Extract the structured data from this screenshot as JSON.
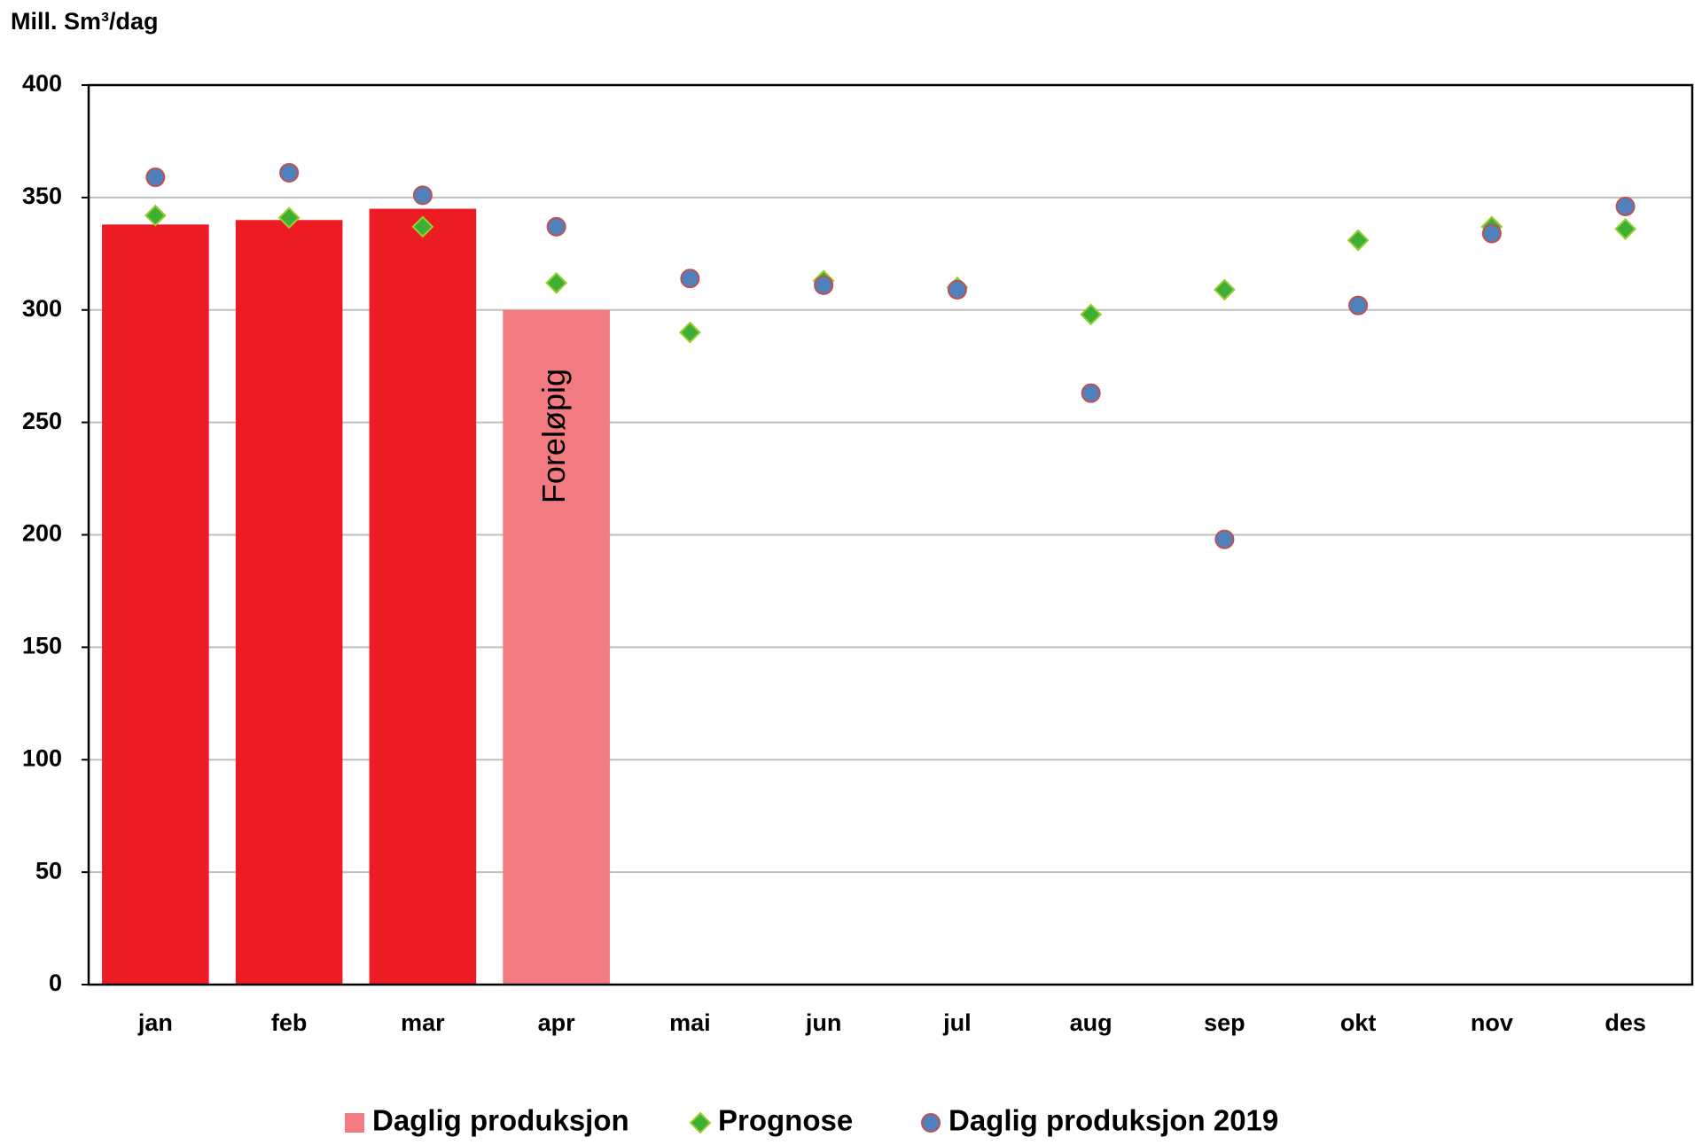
{
  "chart_data": {
    "type": "bar",
    "y_label": "Mill. Sm³/dag",
    "categories": [
      "jan",
      "feb",
      "mar",
      "apr",
      "mai",
      "jun",
      "jul",
      "aug",
      "sep",
      "okt",
      "nov",
      "des"
    ],
    "series": [
      {
        "name": "Daglig produksjon",
        "type": "bar",
        "color": "#f27b82",
        "colors": [
          "#ed1c24",
          "#ed1c24",
          "#ed1c24",
          "#f27b82",
          null,
          null,
          null,
          null,
          null,
          null,
          null,
          null
        ],
        "values": [
          338,
          340,
          345,
          300,
          null,
          null,
          null,
          null,
          null,
          null,
          null,
          null
        ]
      },
      {
        "name": "Prognose",
        "type": "diamond",
        "color": "#3cb034",
        "stroke": "#9acd32",
        "values": [
          342,
          341,
          337,
          312,
          290,
          313,
          310,
          298,
          309,
          331,
          337,
          336
        ]
      },
      {
        "name": "Daglig produksjon 2019",
        "type": "circle",
        "color": "#4f81bd",
        "stroke": "#c0504d",
        "values": [
          359,
          361,
          351,
          337,
          314,
          311,
          309,
          263,
          198,
          302,
          334,
          346
        ]
      }
    ],
    "annotation": {
      "text": "Foreløpig",
      "category": 3
    },
    "ylim": [
      0,
      400
    ],
    "yticks": [
      0,
      50,
      100,
      150,
      200,
      250,
      300,
      350,
      400
    ],
    "grid": true,
    "legend": "bottom"
  }
}
